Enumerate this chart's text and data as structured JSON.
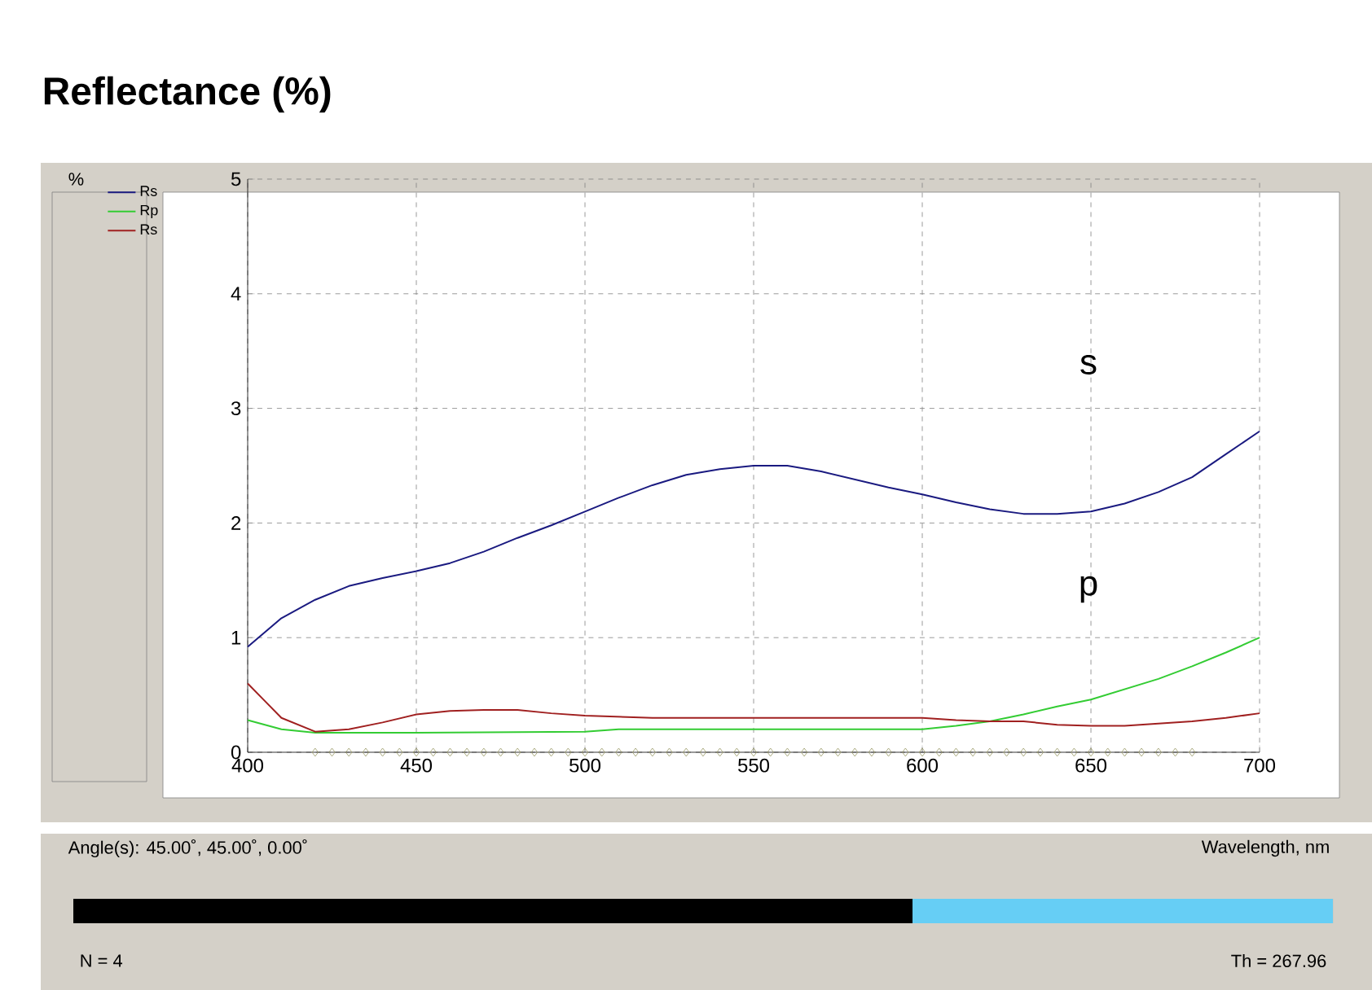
{
  "chart_data": {
    "type": "line",
    "title": "**Reflectance (%)**",
    "xlabel": "Wavelength, nm",
    "xlim": [
      400,
      700
    ],
    "ylim": [
      0,
      5
    ],
    "xticks": [
      400,
      450,
      500,
      550,
      600,
      650,
      700
    ],
    "yticks": [
      0,
      1,
      2,
      3,
      4,
      5
    ],
    "grid": true,
    "legend": "left",
    "line_style": "solid",
    "series": [
      {
        "name": "Rs",
        "color": "#1a1a80",
        "x": [
          400,
          410,
          420,
          430,
          440,
          450,
          460,
          470,
          480,
          490,
          500,
          510,
          520,
          530,
          540,
          550,
          560,
          570,
          580,
          590,
          600,
          610,
          620,
          630,
          640,
          650,
          660,
          670,
          680,
          690,
          700
        ],
        "values": [
          0.92,
          1.17,
          1.33,
          1.45,
          1.52,
          1.58,
          1.65,
          1.75,
          1.87,
          1.98,
          2.1,
          2.22,
          2.33,
          2.42,
          2.47,
          2.5,
          2.5,
          2.45,
          2.38,
          2.31,
          2.25,
          2.18,
          2.12,
          2.08,
          2.08,
          2.1,
          2.17,
          2.27,
          2.4,
          2.6,
          2.8
        ]
      },
      {
        "name": "Rp",
        "color": "#33cc33",
        "x": [
          400,
          410,
          420,
          450,
          500,
          510,
          550,
          600,
          610,
          620,
          630,
          640,
          650,
          660,
          670,
          680,
          690,
          700
        ],
        "values": [
          0.28,
          0.2,
          0.17,
          0.17,
          0.18,
          0.2,
          0.2,
          0.2,
          0.23,
          0.27,
          0.33,
          0.4,
          0.46,
          0.55,
          0.64,
          0.75,
          0.87,
          1.0
        ]
      },
      {
        "name": "Rs",
        "color": "#a02020",
        "x": [
          400,
          405,
          410,
          420,
          430,
          440,
          450,
          460,
          470,
          480,
          490,
          500,
          520,
          550,
          600,
          610,
          620,
          630,
          640,
          650,
          660,
          670,
          680,
          690,
          700
        ],
        "values": [
          0.6,
          0.45,
          0.3,
          0.18,
          0.2,
          0.26,
          0.33,
          0.36,
          0.37,
          0.37,
          0.34,
          0.32,
          0.3,
          0.3,
          0.3,
          0.28,
          0.27,
          0.27,
          0.24,
          0.23,
          0.23,
          0.25,
          0.27,
          0.3,
          0.34
        ]
      },
      {
        "type": "scatter",
        "marker": "diamond",
        "color": "#999966",
        "x": [
          420,
          425,
          430,
          435,
          440,
          445,
          450,
          455,
          460,
          465,
          470,
          475,
          480,
          485,
          490,
          495,
          500,
          505,
          510,
          515,
          520,
          525,
          530,
          535,
          540,
          545,
          550,
          555,
          560,
          565,
          570,
          575,
          580,
          585,
          590,
          595,
          600,
          605,
          610,
          615,
          620,
          625,
          630,
          635,
          640,
          645,
          650,
          655,
          660,
          665,
          670,
          675,
          680
        ],
        "values": [
          0,
          0,
          0,
          0,
          0,
          0,
          0,
          0,
          0,
          0,
          0,
          0,
          0,
          0,
          0,
          0,
          0,
          0,
          0,
          0,
          0,
          0,
          0,
          0,
          0,
          0,
          0,
          0,
          0,
          0,
          0,
          0,
          0,
          0,
          0,
          0,
          0,
          0,
          0,
          0,
          0,
          0,
          0,
          0,
          0,
          0,
          0,
          0,
          0,
          0,
          0,
          0,
          0
        ]
      }
    ],
    "annotations": [
      "s",
      "p",
      "%",
      "Angle(s): 45.00˚, 45.00˚, 0.00˚",
      "N = 4",
      "Th = 267.96"
    ]
  }
}
